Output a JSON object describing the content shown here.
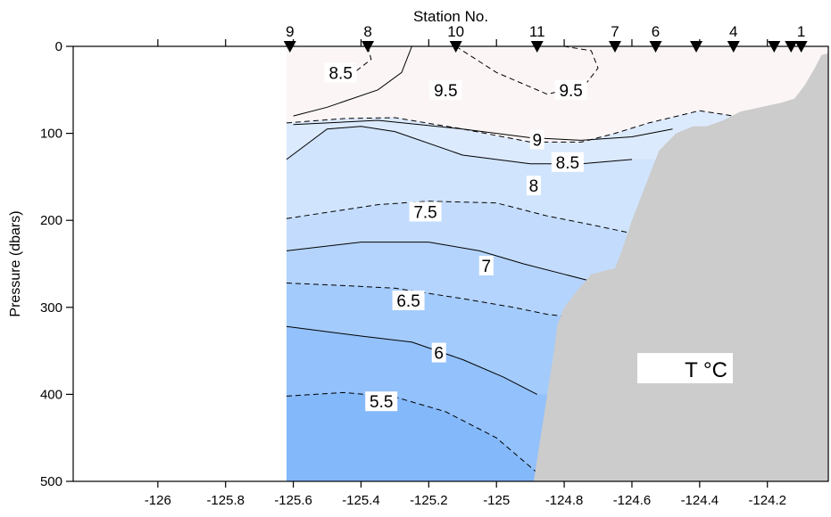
{
  "chart_data": {
    "type": "heatmap",
    "title": "",
    "top_axis_label": "Station No.",
    "xlabel": "",
    "ylabel": "Pressure (dbars)",
    "xlim": [
      -126.25,
      -124.02
    ],
    "ylim": [
      0,
      500
    ],
    "y_inverted": true,
    "x_ticks": [
      -126,
      -125.8,
      -125.6,
      -125.4,
      -125.2,
      -125,
      -124.8,
      -124.6,
      -124.4,
      -124.2
    ],
    "x_tick_labels": [
      "-126",
      "-125.8",
      "-125.6",
      "-125.4",
      "-125.2",
      "-125",
      "-124.8",
      "-124.6",
      "-124.4",
      "-124.2"
    ],
    "y_ticks": [
      0,
      100,
      200,
      300,
      400,
      500
    ],
    "y_tick_labels": [
      "0",
      "100",
      "200",
      "300",
      "400",
      "500"
    ],
    "variable_label": "T °C",
    "stations": [
      {
        "x": -125.61,
        "label": "9"
      },
      {
        "x": -125.38,
        "label": "8"
      },
      {
        "x": -125.12,
        "label": "10"
      },
      {
        "x": -124.88,
        "label": "11"
      },
      {
        "x": -124.65,
        "label": "7"
      },
      {
        "x": -124.53,
        "label": "6"
      },
      {
        "x": -124.41,
        "label": ""
      },
      {
        "x": -124.3,
        "label": "4"
      },
      {
        "x": -124.18,
        "label": ""
      },
      {
        "x": -124.13,
        "label": ""
      },
      {
        "x": -124.1,
        "label": "1"
      }
    ],
    "contour_labels": [
      {
        "text": "8.5",
        "x": -125.46,
        "y": 30
      },
      {
        "text": "9.5",
        "x": -125.15,
        "y": 50
      },
      {
        "text": "9.5",
        "x": -124.78,
        "y": 50
      },
      {
        "text": "9",
        "x": -124.88,
        "y": 107
      },
      {
        "text": "8.5",
        "x": -124.79,
        "y": 133
      },
      {
        "text": "8",
        "x": -124.89,
        "y": 160
      },
      {
        "text": "7.5",
        "x": -125.21,
        "y": 190
      },
      {
        "text": "7",
        "x": -125.03,
        "y": 252
      },
      {
        "text": "6.5",
        "x": -125.26,
        "y": 292
      },
      {
        "text": "6",
        "x": -125.17,
        "y": 352
      },
      {
        "text": "5.5",
        "x": -125.34,
        "y": 408
      }
    ],
    "contours": [
      {
        "level": 9.5,
        "style": "dashed",
        "x": [
          -125.12,
          -125.0,
          -124.85,
          -124.74,
          -124.7,
          -124.72,
          -124.8
        ],
        "y": [
          0,
          30,
          55,
          45,
          25,
          5,
          0
        ]
      },
      {
        "level": 9,
        "style": "solid",
        "x": [
          -125.6,
          -125.35,
          -125.1,
          -124.9,
          -124.75,
          -124.6,
          -124.48
        ],
        "y": [
          90,
          85,
          95,
          105,
          108,
          104,
          95
        ]
      },
      {
        "level": 9,
        "style": "solid",
        "x": [
          -125.25,
          -125.28,
          -125.35,
          -125.5,
          -125.6
        ],
        "y": [
          0,
          30,
          50,
          70,
          80
        ]
      },
      {
        "level": 8.5,
        "style": "dashed",
        "x": [
          -125.62,
          -125.45,
          -125.3,
          -125.1,
          -124.9,
          -124.75,
          -124.65,
          -124.55,
          -124.4,
          -124.3
        ],
        "y": [
          88,
          83,
          82,
          95,
          110,
          110,
          100,
          88,
          74,
          80
        ]
      },
      {
        "level": 8.5,
        "style": "dashed",
        "x": [
          -125.38,
          -125.37,
          -125.42,
          -125.5
        ],
        "y": [
          0,
          15,
          30,
          35
        ]
      },
      {
        "level": 8,
        "style": "solid",
        "x": [
          -125.62,
          -125.5,
          -125.4,
          -125.3,
          -125.1,
          -124.9,
          -124.75,
          -124.6
        ],
        "y": [
          130,
          95,
          92,
          98,
          125,
          135,
          135,
          130
        ]
      },
      {
        "level": 7.5,
        "style": "dashed",
        "x": [
          -125.62,
          -125.35,
          -125.2,
          -125.0,
          -124.85,
          -124.72,
          -124.6
        ],
        "y": [
          198,
          182,
          178,
          180,
          195,
          205,
          215
        ]
      },
      {
        "level": 7,
        "style": "solid",
        "x": [
          -125.62,
          -125.4,
          -125.2,
          -125.05,
          -124.92,
          -124.8,
          -124.72
        ],
        "y": [
          235,
          225,
          225,
          235,
          250,
          262,
          270
        ]
      },
      {
        "level": 6.5,
        "style": "dashed",
        "x": [
          -125.62,
          -125.45,
          -125.3,
          -125.1,
          -124.95,
          -124.85,
          -124.76
        ],
        "y": [
          272,
          275,
          278,
          290,
          300,
          308,
          312
        ]
      },
      {
        "level": 6,
        "style": "solid",
        "x": [
          -125.62,
          -125.4,
          -125.25,
          -125.1,
          -124.98,
          -124.88
        ],
        "y": [
          322,
          333,
          340,
          360,
          380,
          400
        ]
      },
      {
        "level": 5.5,
        "style": "dashed",
        "x": [
          -125.62,
          -125.45,
          -125.3,
          -125.15,
          -125.0,
          -124.88
        ],
        "y": [
          402,
          398,
          403,
          420,
          450,
          490
        ]
      }
    ],
    "bottom_topography": {
      "x": [
        -124.89,
        -124.87,
        -124.85,
        -124.83,
        -124.82,
        -124.8,
        -124.76,
        -124.72,
        -124.68,
        -124.65,
        -124.63,
        -124.6,
        -124.56,
        -124.52,
        -124.47,
        -124.42,
        -124.38,
        -124.33,
        -124.28,
        -124.22,
        -124.16,
        -124.12,
        -124.09,
        -124.06,
        -124.04,
        -124.02
      ],
      "y": [
        500,
        450,
        400,
        350,
        320,
        300,
        280,
        262,
        258,
        255,
        235,
        200,
        160,
        120,
        100,
        92,
        92,
        85,
        75,
        70,
        65,
        60,
        45,
        25,
        10,
        8
      ]
    },
    "color_bands": [
      {
        "value_range": [
          9.5,
          10
        ],
        "color": "#fbf5f6"
      },
      {
        "value_range": [
          9,
          9.5
        ],
        "color": "#f2f7fe"
      },
      {
        "value_range": [
          8.5,
          9
        ],
        "color": "#e7f0fd"
      },
      {
        "value_range": [
          8,
          8.5
        ],
        "color": "#dceafd"
      },
      {
        "value_range": [
          7.5,
          8
        ],
        "color": "#d0e4fd"
      },
      {
        "value_range": [
          7,
          7.5
        ],
        "color": "#c3dcfd"
      },
      {
        "value_range": [
          6.5,
          7
        ],
        "color": "#b4d4fd"
      },
      {
        "value_range": [
          6,
          6.5
        ],
        "color": "#a3cbfc"
      },
      {
        "value_range": [
          5.5,
          6
        ],
        "color": "#92c1fb"
      },
      {
        "value_range": [
          5,
          5.5
        ],
        "color": "#83b8fa"
      }
    ],
    "data_coverage_x": [
      -125.62,
      -124.02
    ],
    "land_color": "#cccccc"
  }
}
